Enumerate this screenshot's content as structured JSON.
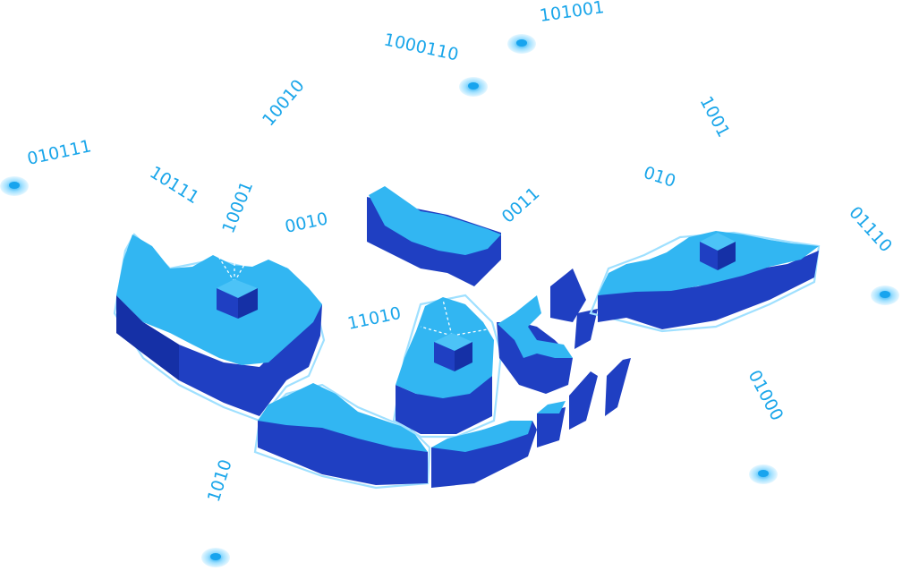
{
  "binary_labels": [
    "101001",
    "1000110",
    "10010",
    "010111",
    "1001",
    "10111",
    "10001",
    "0010",
    "0011",
    "010",
    "01110",
    "11010",
    "01000",
    "1010"
  ],
  "colors": {
    "top": "#32b6f2",
    "side": "#1f3fc2",
    "rim": "#9fe0ff",
    "text": "#1aa6ea",
    "background": "#ffffff"
  },
  "icons": [
    "location-pin-icon",
    "server-cube-icon"
  ]
}
